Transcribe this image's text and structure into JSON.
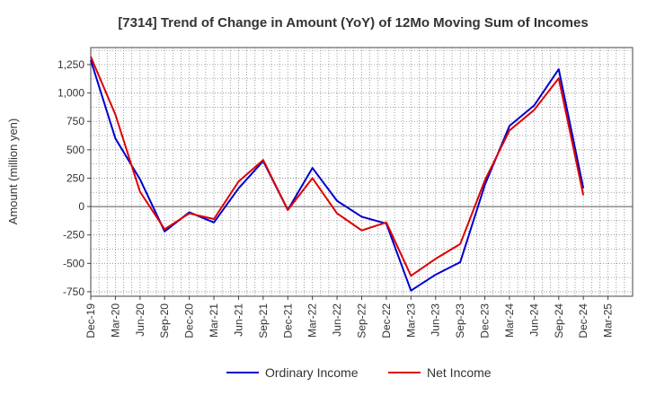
{
  "chart_data": {
    "type": "line",
    "title": "[7314]  Trend of Change in Amount (YoY) of 12Mo Moving Sum of Incomes",
    "ylabel": "Amount (million yen)",
    "xlabel": "",
    "categories": [
      "Dec-19",
      "Mar-20",
      "Jun-20",
      "Sep-20",
      "Dec-20",
      "Mar-21",
      "Jun-21",
      "Sep-21",
      "Dec-21",
      "Mar-22",
      "Jun-22",
      "Sep-22",
      "Dec-22",
      "Mar-23",
      "Jun-23",
      "Sep-23",
      "Dec-23",
      "Mar-24",
      "Jun-24",
      "Sep-24",
      "Dec-24",
      "Mar-25"
    ],
    "ylim": [
      -790,
      1400
    ],
    "yticks": [
      -750,
      -500,
      -250,
      0,
      250,
      500,
      750,
      1000,
      1250
    ],
    "ytick_labels": [
      "-750",
      "-500",
      "-250",
      "0",
      "250",
      "500",
      "750",
      "1,000",
      "1,250"
    ],
    "grid": true,
    "legend_position": "bottom",
    "series": [
      {
        "name": "Ordinary Income",
        "color": "#0000cc",
        "values": [
          1290,
          600,
          240,
          -220,
          -50,
          -140,
          160,
          400,
          -30,
          340,
          50,
          -90,
          -150,
          -740,
          -600,
          -490,
          190,
          710,
          890,
          1210,
          160,
          null
        ]
      },
      {
        "name": "Net Income",
        "color": "#dd0000",
        "values": [
          1320,
          810,
          130,
          -200,
          -60,
          -110,
          220,
          410,
          -30,
          250,
          -60,
          -210,
          -140,
          -610,
          -460,
          -330,
          230,
          670,
          850,
          1130,
          100,
          null
        ]
      }
    ]
  }
}
